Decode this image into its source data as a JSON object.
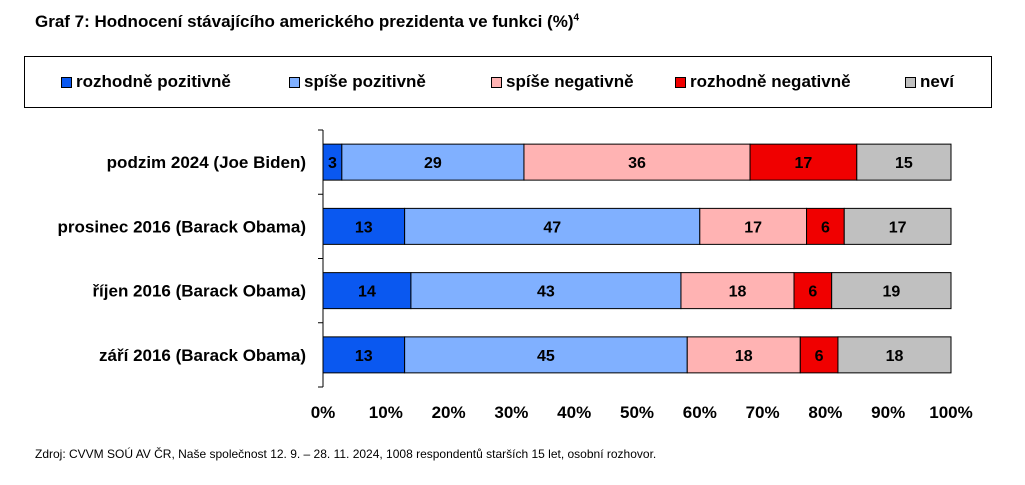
{
  "title": "Graf 7: Hodnocení stávajícího amerického prezidenta ve funkci (%)",
  "title_sup": "4",
  "source": "Zdroj: CVVM SOÚ AV ČR, Naše společnost 12. 9. – 28. 11. 2024, 1008 respondentů starších 15 let, osobní rozhovor.",
  "chart_data": {
    "type": "bar",
    "orientation": "horizontal",
    "stacked": true,
    "normalized": true,
    "categories": [
      "podzim 2024 (Joe Biden)",
      "prosinec 2016 (Barack Obama)",
      "říjen 2016 (Barack Obama)",
      "září 2016 (Barack Obama)"
    ],
    "series": [
      {
        "name": "rozhodně pozitivně",
        "color": "#0A58F0",
        "values": [
          3,
          13,
          14,
          13
        ]
      },
      {
        "name": "spíše pozitivně",
        "color": "#80B0FF",
        "values": [
          29,
          47,
          43,
          45
        ]
      },
      {
        "name": "spíše negativně",
        "color": "#FFB3B3",
        "values": [
          36,
          17,
          18,
          18
        ]
      },
      {
        "name": "rozhodně negativně",
        "color": "#F00000",
        "values": [
          17,
          6,
          6,
          6
        ]
      },
      {
        "name": "neví",
        "color": "#C0C0C0",
        "values": [
          15,
          17,
          19,
          18
        ]
      }
    ],
    "xlim": [
      0,
      100
    ],
    "xticks": [
      "0%",
      "10%",
      "20%",
      "30%",
      "40%",
      "50%",
      "60%",
      "70%",
      "80%",
      "90%",
      "100%"
    ],
    "legend_position": "top",
    "grid": false
  }
}
